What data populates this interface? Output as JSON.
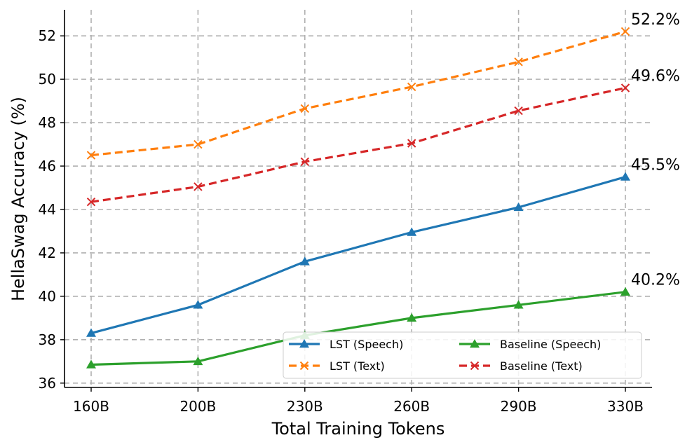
{
  "chart_data": {
    "type": "line",
    "xlabel": "Total Training Tokens",
    "ylabel": "HellaSwag Accuracy (%)",
    "categories": [
      "160B",
      "200B",
      "230B",
      "260B",
      "290B",
      "330B"
    ],
    "ylim": [
      35.8,
      53.2
    ],
    "yticks": [
      36,
      38,
      40,
      42,
      44,
      46,
      48,
      50,
      52
    ],
    "grid": true,
    "legend_position": "bottom-right",
    "series": [
      {
        "name": "LST (Speech)",
        "values": [
          38.3,
          39.6,
          41.6,
          42.95,
          44.1,
          45.5
        ],
        "color": "#1f77b4",
        "linestyle": "solid",
        "marker": "triangle"
      },
      {
        "name": "LST (Text)",
        "values": [
          46.5,
          47.0,
          48.65,
          49.65,
          50.8,
          52.2
        ],
        "color": "#ff7f0e",
        "linestyle": "dashed",
        "marker": "x"
      },
      {
        "name": "Baseline (Speech)",
        "values": [
          36.85,
          37.0,
          38.2,
          39.0,
          39.6,
          40.2
        ],
        "color": "#2ca02c",
        "linestyle": "solid",
        "marker": "triangle"
      },
      {
        "name": "Baseline (Text)",
        "values": [
          44.35,
          45.05,
          46.2,
          47.05,
          48.55,
          49.6
        ],
        "color": "#d62728",
        "linestyle": "dashed",
        "marker": "x"
      }
    ],
    "end_labels": [
      {
        "text": "52.2%",
        "series": 1
      },
      {
        "text": "49.6%",
        "series": 3
      },
      {
        "text": "45.5%",
        "series": 0
      },
      {
        "text": "40.2%",
        "series": 2
      }
    ]
  }
}
